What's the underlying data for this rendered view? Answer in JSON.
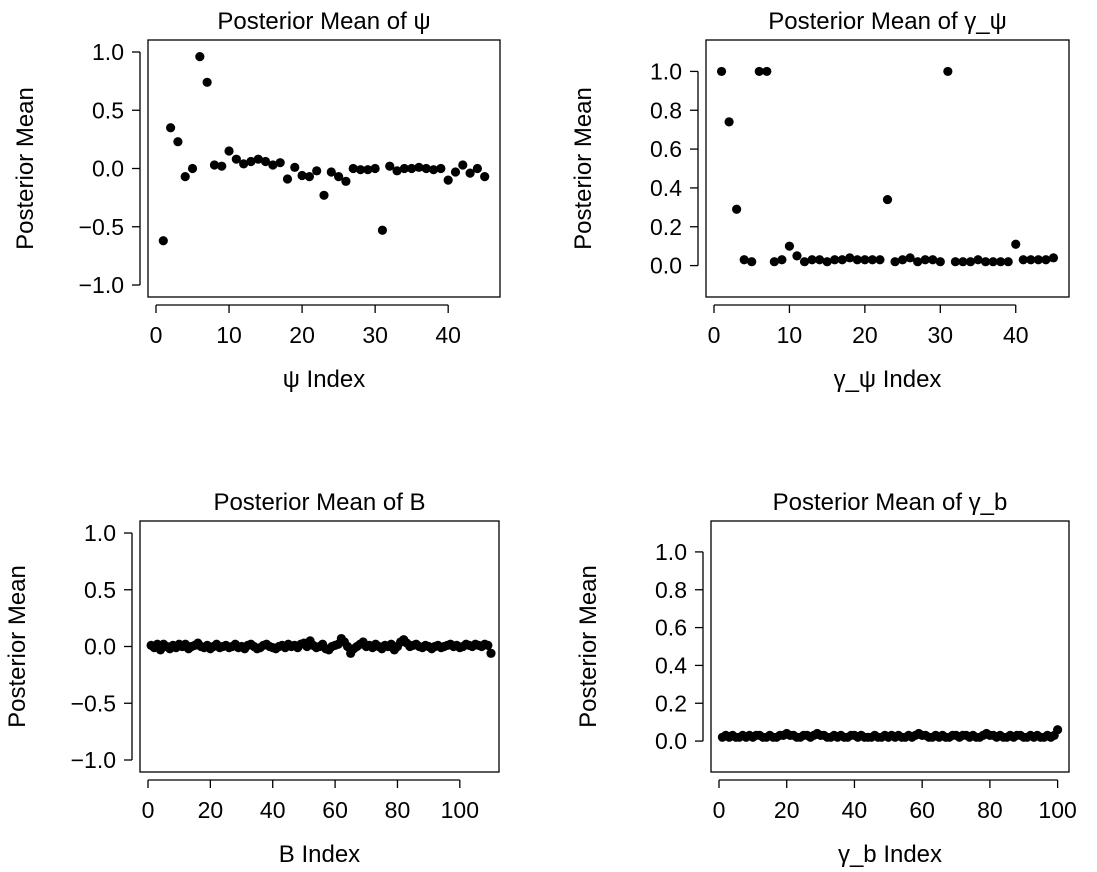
{
  "chart_data": [
    {
      "type": "scatter",
      "title": "Posterior Mean of ψ",
      "xlabel": "ψ Index",
      "ylabel": "Posterior Mean",
      "xlim": [
        0,
        46
      ],
      "ylim": [
        -1.0,
        1.0
      ],
      "xticks": [
        0,
        10,
        20,
        30,
        40
      ],
      "yticks": [
        -1.0,
        -0.5,
        0.0,
        0.5,
        1.0
      ],
      "ytick_labels": [
        "−1.0",
        "−0.5",
        "0.0",
        "0.5",
        "1.0"
      ],
      "x": [
        1,
        2,
        3,
        4,
        5,
        6,
        7,
        8,
        9,
        10,
        11,
        12,
        13,
        14,
        15,
        16,
        17,
        18,
        19,
        20,
        21,
        22,
        23,
        24,
        25,
        26,
        27,
        28,
        29,
        30,
        31,
        32,
        33,
        34,
        35,
        36,
        37,
        38,
        39,
        40,
        41,
        42,
        43,
        44,
        45
      ],
      "y": [
        -0.62,
        0.35,
        0.23,
        -0.07,
        0.0,
        0.96,
        0.74,
        0.03,
        0.02,
        0.15,
        0.08,
        0.04,
        0.06,
        0.08,
        0.06,
        0.03,
        0.05,
        -0.09,
        0.01,
        -0.06,
        -0.07,
        -0.02,
        -0.23,
        -0.03,
        -0.07,
        -0.11,
        0.0,
        -0.01,
        -0.01,
        0.0,
        -0.53,
        0.02,
        -0.02,
        0.0,
        0.0,
        0.01,
        0.0,
        -0.01,
        0.0,
        -0.1,
        -0.03,
        0.03,
        -0.04,
        0.0,
        -0.07
      ]
    },
    {
      "type": "scatter",
      "title": "Posterior Mean of γ_ψ",
      "xlabel": "γ_ψ Index",
      "ylabel": "Posterior Mean",
      "xlim": [
        0,
        46
      ],
      "ylim": [
        -0.1,
        1.1
      ],
      "xticks": [
        0,
        10,
        20,
        30,
        40
      ],
      "yticks": [
        0.0,
        0.2,
        0.4,
        0.6,
        0.8,
        1.0
      ],
      "ytick_labels": [
        "0.0",
        "0.2",
        "0.4",
        "0.6",
        "0.8",
        "1.0"
      ],
      "x": [
        1,
        2,
        3,
        4,
        5,
        6,
        7,
        8,
        9,
        10,
        11,
        12,
        13,
        14,
        15,
        16,
        17,
        18,
        19,
        20,
        21,
        22,
        23,
        24,
        25,
        26,
        27,
        28,
        29,
        30,
        31,
        32,
        33,
        34,
        35,
        36,
        37,
        38,
        39,
        40,
        41,
        42,
        43,
        44,
        45
      ],
      "y": [
        1.0,
        0.74,
        0.29,
        0.03,
        0.02,
        1.0,
        1.0,
        0.02,
        0.03,
        0.1,
        0.05,
        0.02,
        0.03,
        0.03,
        0.02,
        0.03,
        0.03,
        0.04,
        0.03,
        0.03,
        0.03,
        0.03,
        0.34,
        0.02,
        0.03,
        0.04,
        0.02,
        0.03,
        0.03,
        0.02,
        1.0,
        0.02,
        0.02,
        0.02,
        0.03,
        0.02,
        0.02,
        0.02,
        0.02,
        0.11,
        0.03,
        0.03,
        0.03,
        0.03,
        0.04
      ]
    },
    {
      "type": "scatter",
      "title": "Posterior Mean of B",
      "xlabel": "B Index",
      "ylabel": "Posterior Mean",
      "xlim": [
        0,
        110
      ],
      "ylim": [
        -1.0,
        1.0
      ],
      "xticks": [
        0,
        20,
        40,
        60,
        80,
        100
      ],
      "yticks": [
        -1.0,
        -0.5,
        0.0,
        0.5,
        1.0
      ],
      "ytick_labels": [
        "−1.0",
        "−0.5",
        "0.0",
        "0.5",
        "1.0"
      ],
      "x": [
        1,
        2,
        3,
        4,
        5,
        6,
        7,
        8,
        9,
        10,
        11,
        12,
        13,
        14,
        15,
        16,
        17,
        18,
        19,
        20,
        21,
        22,
        23,
        24,
        25,
        26,
        27,
        28,
        29,
        30,
        31,
        32,
        33,
        34,
        35,
        36,
        37,
        38,
        39,
        40,
        41,
        42,
        43,
        44,
        45,
        46,
        47,
        48,
        49,
        50,
        51,
        52,
        53,
        54,
        55,
        56,
        57,
        58,
        59,
        60,
        61,
        62,
        63,
        64,
        65,
        66,
        67,
        68,
        69,
        70,
        71,
        72,
        73,
        74,
        75,
        76,
        77,
        78,
        79,
        80,
        81,
        82,
        83,
        84,
        85,
        86,
        87,
        88,
        89,
        90,
        91,
        92,
        93,
        94,
        95,
        96,
        97,
        98,
        99,
        100,
        101,
        102,
        103,
        104,
        105,
        106,
        107,
        108,
        109,
        110
      ],
      "y": [
        0.01,
        -0.01,
        0.02,
        -0.03,
        0.02,
        0.0,
        -0.02,
        0.01,
        -0.01,
        0.02,
        0.0,
        0.02,
        -0.02,
        0.0,
        0.01,
        0.03,
        0.0,
        -0.01,
        0.01,
        -0.02,
        0.0,
        0.02,
        -0.01,
        0.0,
        0.01,
        -0.01,
        0.0,
        0.02,
        -0.01,
        0.0,
        -0.02,
        0.01,
        0.02,
        0.0,
        -0.02,
        -0.01,
        0.01,
        0.02,
        0.0,
        -0.01,
        -0.02,
        0.0,
        0.01,
        -0.01,
        0.02,
        0.0,
        0.01,
        -0.01,
        0.02,
        0.03,
        0.0,
        0.05,
        0.01,
        -0.01,
        0.0,
        0.02,
        -0.02,
        -0.03,
        0.0,
        0.01,
        0.02,
        0.07,
        0.04,
        0.0,
        -0.06,
        -0.02,
        0.0,
        0.02,
        0.04,
        0.0,
        0.01,
        -0.01,
        0.02,
        0.0,
        -0.02,
        0.01,
        0.0,
        0.02,
        -0.03,
        0.0,
        0.04,
        0.06,
        0.03,
        0.0,
        0.01,
        0.02,
        0.0,
        -0.01,
        0.01,
        0.0,
        -0.02,
        0.0,
        0.01,
        -0.01,
        0.0,
        0.01,
        0.02,
        0.0,
        0.01,
        -0.01,
        0.0,
        0.02,
        0.01,
        0.0,
        0.02,
        0.01,
        0.0,
        0.02,
        0.01,
        -0.06
      ]
    },
    {
      "type": "scatter",
      "title": "Posterior Mean of γ_b",
      "xlabel": "γ_b Index",
      "ylabel": "Posterior Mean",
      "xlim": [
        0,
        101
      ],
      "ylim": [
        -0.1,
        1.1
      ],
      "xticks": [
        0,
        20,
        40,
        60,
        80,
        100
      ],
      "yticks": [
        0.0,
        0.2,
        0.4,
        0.6,
        0.8,
        1.0
      ],
      "ytick_labels": [
        "0.0",
        "0.2",
        "0.4",
        "0.6",
        "0.8",
        "1.0"
      ],
      "x": [
        1,
        2,
        3,
        4,
        5,
        6,
        7,
        8,
        9,
        10,
        11,
        12,
        13,
        14,
        15,
        16,
        17,
        18,
        19,
        20,
        21,
        22,
        23,
        24,
        25,
        26,
        27,
        28,
        29,
        30,
        31,
        32,
        33,
        34,
        35,
        36,
        37,
        38,
        39,
        40,
        41,
        42,
        43,
        44,
        45,
        46,
        47,
        48,
        49,
        50,
        51,
        52,
        53,
        54,
        55,
        56,
        57,
        58,
        59,
        60,
        61,
        62,
        63,
        64,
        65,
        66,
        67,
        68,
        69,
        70,
        71,
        72,
        73,
        74,
        75,
        76,
        77,
        78,
        79,
        80,
        81,
        82,
        83,
        84,
        85,
        86,
        87,
        88,
        89,
        90,
        91,
        92,
        93,
        94,
        95,
        96,
        97,
        98,
        99,
        100
      ],
      "y": [
        0.02,
        0.03,
        0.02,
        0.03,
        0.02,
        0.02,
        0.03,
        0.02,
        0.03,
        0.02,
        0.03,
        0.03,
        0.02,
        0.02,
        0.03,
        0.02,
        0.02,
        0.03,
        0.03,
        0.04,
        0.03,
        0.03,
        0.02,
        0.02,
        0.03,
        0.03,
        0.02,
        0.03,
        0.04,
        0.03,
        0.03,
        0.02,
        0.02,
        0.03,
        0.02,
        0.03,
        0.02,
        0.02,
        0.03,
        0.03,
        0.02,
        0.03,
        0.02,
        0.02,
        0.02,
        0.03,
        0.02,
        0.02,
        0.03,
        0.02,
        0.03,
        0.02,
        0.03,
        0.02,
        0.02,
        0.03,
        0.02,
        0.03,
        0.04,
        0.03,
        0.03,
        0.02,
        0.02,
        0.03,
        0.02,
        0.03,
        0.02,
        0.02,
        0.03,
        0.03,
        0.02,
        0.03,
        0.03,
        0.02,
        0.03,
        0.02,
        0.02,
        0.03,
        0.04,
        0.03,
        0.03,
        0.02,
        0.03,
        0.02,
        0.02,
        0.03,
        0.02,
        0.03,
        0.03,
        0.02,
        0.02,
        0.03,
        0.02,
        0.03,
        0.02,
        0.02,
        0.03,
        0.02,
        0.03,
        0.06
      ]
    }
  ]
}
